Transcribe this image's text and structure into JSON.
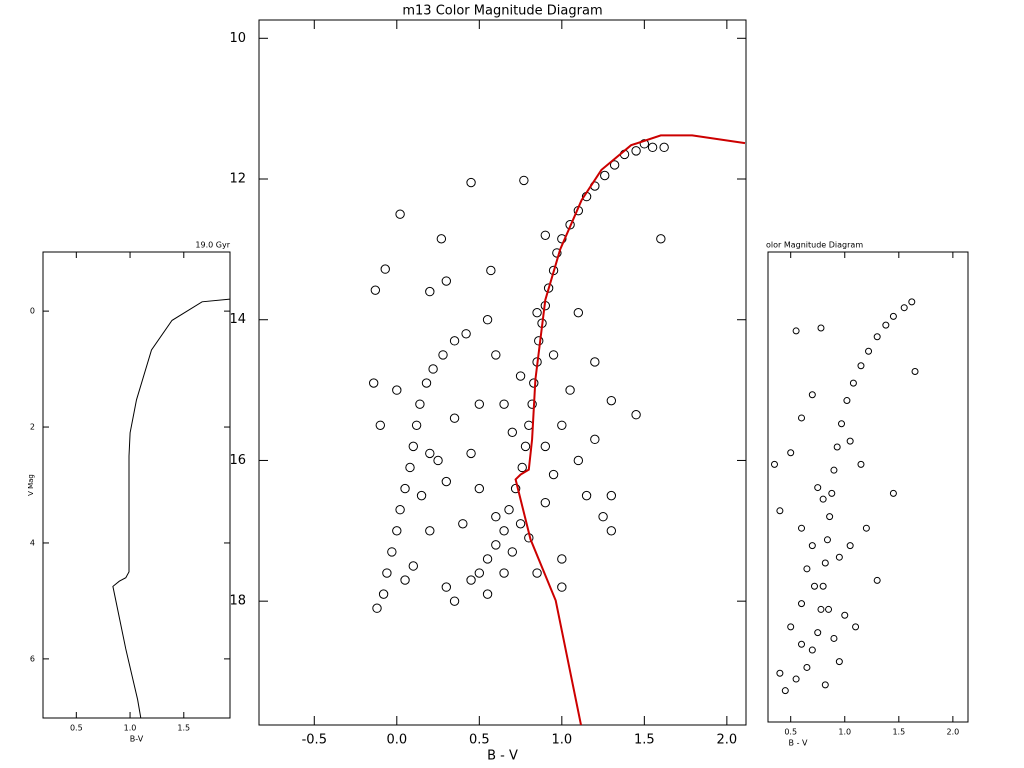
{
  "chart_data": [
    {
      "type": "line",
      "title": "19.0 Gyr",
      "x_label": "B-V",
      "y_label": "V Mag",
      "y_inverted": true,
      "xlim": [
        0.19,
        1.93
      ],
      "ylim": [
        -1.02,
        7.02
      ],
      "xticks": [
        0.5,
        {
          "value": 1,
          "label": "1.0"
        },
        1.5
      ],
      "yticks": [
        0,
        2,
        4,
        6
      ],
      "color": "#000000",
      "x": [
        1.1,
        1.07,
        0.96,
        0.84,
        0.9,
        0.96,
        0.99,
        0.99,
        1.0,
        1.06,
        1.2,
        1.39,
        1.67,
        1.95
      ],
      "values": [
        7.02,
        6.7,
        5.83,
        4.75,
        4.66,
        4.6,
        4.5,
        2.5,
        2.1,
        1.53,
        0.67,
        0.16,
        -0.16,
        -0.21
      ]
    },
    {
      "type": "scatter",
      "title": "m13 Color Magnitude Diagram",
      "x_label": "B - V",
      "y_inverted": true,
      "xlim": [
        -0.835,
        2.116
      ],
      "ylim": [
        9.74,
        19.76
      ],
      "xticks": [
        -0.5,
        {
          "value": 0,
          "label": "0.0"
        },
        0.5,
        {
          "value": 1,
          "label": "1.0"
        },
        1.5,
        {
          "value": 2,
          "label": "2.0"
        }
      ],
      "yticks": [
        10,
        12,
        14,
        16,
        18
      ],
      "color": "#000000",
      "x": [
        1.55,
        1.5,
        1.45,
        1.38,
        1.32,
        1.26,
        1.2,
        1.15,
        1.1,
        1.05,
        1.0,
        0.97,
        0.95,
        0.92,
        0.9,
        0.88,
        0.86,
        0.85,
        0.83,
        0.82,
        0.8,
        0.78,
        0.76,
        0.72,
        0.68,
        0.65,
        0.6,
        0.55,
        0.5,
        0.45,
        0.7,
        0.8,
        0.75,
        0.6,
        0.9,
        0.95,
        0.9,
        0.7,
        0.65,
        0.75,
        0.95,
        1.05,
        1.0,
        1.1,
        1.15,
        1.25,
        1.3,
        1.0,
        0.85,
        0.65,
        0.42,
        0.35,
        0.28,
        0.22,
        0.18,
        0.14,
        0.12,
        0.1,
        0.08,
        0.05,
        0.02,
        0.0,
        -0.03,
        -0.06,
        -0.08,
        -0.12,
        0.45,
        0.77,
        0.02,
        0.27,
        -0.07,
        -0.13,
        0.2,
        0.3,
        0.57,
        1.6,
        1.62,
        -0.14,
        -0.1,
        0.35,
        0.45,
        0.3,
        0.2,
        0.1,
        0.3,
        0.5,
        0.4,
        1.3,
        1.45,
        1.2,
        1.3,
        0.55,
        0.9,
        0.85,
        0.6,
        0.5,
        0.25,
        0.15,
        0.05,
        0.35,
        0.55,
        1.1,
        1.2,
        1.0,
        0.2,
        0.0
      ],
      "values": [
        11.55,
        11.5,
        11.6,
        11.65,
        11.8,
        11.95,
        12.1,
        12.25,
        12.45,
        12.65,
        12.85,
        13.05,
        13.3,
        13.55,
        13.8,
        14.05,
        14.3,
        14.6,
        14.9,
        15.2,
        15.5,
        15.8,
        16.1,
        16.4,
        16.7,
        17.0,
        17.2,
        17.4,
        17.6,
        17.7,
        17.3,
        17.1,
        16.9,
        16.8,
        16.6,
        16.2,
        15.8,
        15.6,
        15.2,
        14.8,
        14.5,
        15.0,
        15.5,
        16.0,
        16.5,
        16.8,
        17.0,
        17.4,
        17.6,
        17.6,
        14.2,
        14.3,
        14.5,
        14.7,
        14.9,
        15.2,
        15.5,
        15.8,
        16.1,
        16.4,
        16.7,
        17.0,
        17.3,
        17.6,
        17.9,
        18.1,
        12.05,
        12.02,
        12.5,
        12.85,
        13.28,
        13.58,
        13.6,
        13.45,
        13.3,
        12.85,
        11.55,
        14.9,
        15.5,
        15.4,
        15.9,
        16.3,
        17.0,
        17.5,
        17.8,
        16.4,
        16.9,
        15.15,
        15.35,
        15.7,
        16.5,
        14.0,
        12.8,
        13.9,
        14.5,
        15.2,
        16.0,
        16.5,
        17.7,
        18.0,
        17.9,
        13.9,
        14.6,
        17.8,
        15.9,
        15.0
      ],
      "overlay_line": {
        "color": "#cc0000",
        "x": [
          1.116,
          0.963,
          0.81,
          0.72,
          0.75,
          0.8,
          0.82,
          0.84,
          0.9,
          0.99,
          1.12,
          1.24,
          1.42,
          1.6,
          1.79,
          2.11
        ],
        "values": [
          19.76,
          17.99,
          17.12,
          16.27,
          16.2,
          16.13,
          15.7,
          14.85,
          13.72,
          13.0,
          12.3,
          11.87,
          11.52,
          11.38,
          11.38,
          11.49
        ]
      }
    },
    {
      "type": "scatter",
      "title": "olor Magnitude Diagram",
      "x_label": "B - V",
      "y_inverted": true,
      "xlim": [
        0.29,
        2.14
      ],
      "ylim": [
        12.74,
        20.84
      ],
      "xticks": [
        0.5,
        {
          "value": 1,
          "label": "1.0"
        },
        1.5,
        {
          "value": 2,
          "label": "2.0"
        }
      ],
      "color": "#000000",
      "x": [
        1.62,
        1.55,
        1.45,
        1.38,
        1.3,
        1.22,
        1.15,
        1.08,
        1.02,
        0.97,
        0.93,
        0.9,
        0.88,
        0.86,
        0.84,
        0.82,
        0.8,
        0.78,
        0.75,
        0.7,
        0.65,
        0.55,
        0.45,
        0.4,
        0.55,
        0.78,
        1.65,
        1.45,
        0.7,
        0.6,
        0.5,
        0.35,
        0.4,
        0.6,
        0.65,
        0.95,
        1.05,
        1.2,
        1.3,
        1.0,
        0.9,
        0.6,
        0.5,
        1.15,
        1.05,
        0.75,
        0.8,
        0.7,
        0.72,
        0.85,
        0.95,
        0.82,
        0.6,
        1.1
      ],
      "values": [
        13.6,
        13.7,
        13.85,
        14.0,
        14.2,
        14.45,
        14.7,
        15.0,
        15.3,
        15.7,
        16.1,
        16.5,
        16.9,
        17.3,
        17.7,
        18.1,
        18.5,
        18.9,
        19.3,
        19.6,
        19.9,
        20.1,
        20.3,
        20.0,
        14.1,
        14.05,
        14.8,
        16.9,
        15.2,
        15.6,
        16.2,
        16.4,
        17.2,
        17.5,
        18.2,
        18.0,
        17.8,
        17.5,
        18.4,
        19.0,
        19.4,
        18.8,
        19.2,
        16.4,
        16.0,
        16.8,
        17.0,
        17.8,
        18.5,
        18.9,
        19.8,
        20.2,
        19.5,
        19.2
      ]
    }
  ]
}
